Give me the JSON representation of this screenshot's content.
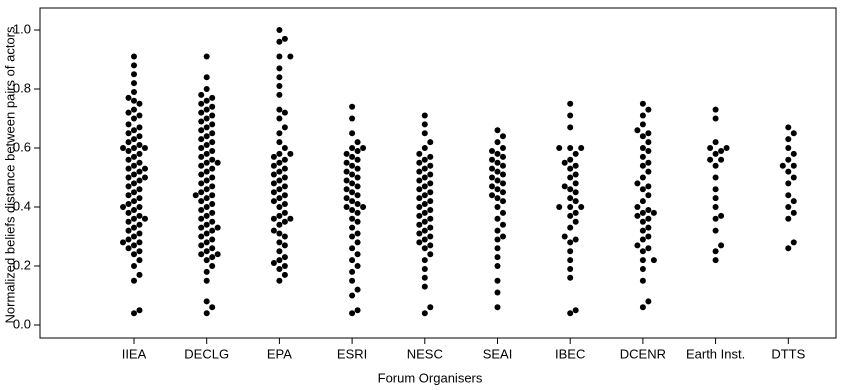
{
  "chart_data": {
    "type": "beeswarm",
    "x_label": "Forum Organisers",
    "y_label": "Normalized beliefs distance between pairs of actors",
    "color": "#000000",
    "ylim": [
      0,
      1
    ],
    "yticks": [
      {
        "value": 0,
        "label": "0.0"
      },
      {
        "value": 0.2,
        "label": "0.2"
      },
      {
        "value": 0.4,
        "label": "0.4"
      },
      {
        "value": 0.6,
        "label": "0.6"
      },
      {
        "value": 0.8,
        "label": "0.8"
      },
      {
        "value": 1,
        "label": "1.0"
      }
    ],
    "categories": [
      "IIEA",
      "DECLG",
      "EPA",
      "ESRI",
      "NESC",
      "SEAI",
      "IBEC",
      "DCENR",
      "Earth Inst.",
      "DTTS"
    ],
    "values": [
      [
        0.04,
        0.05,
        0.15,
        0.17,
        0.2,
        0.22,
        0.24,
        0.25,
        0.26,
        0.27,
        0.28,
        0.28,
        0.29,
        0.3,
        0.31,
        0.32,
        0.33,
        0.34,
        0.35,
        0.36,
        0.36,
        0.37,
        0.38,
        0.39,
        0.4,
        0.4,
        0.41,
        0.42,
        0.43,
        0.44,
        0.45,
        0.46,
        0.47,
        0.48,
        0.49,
        0.5,
        0.5,
        0.51,
        0.52,
        0.53,
        0.53,
        0.54,
        0.55,
        0.56,
        0.57,
        0.58,
        0.59,
        0.6,
        0.6,
        0.6,
        0.61,
        0.62,
        0.63,
        0.64,
        0.65,
        0.66,
        0.67,
        0.68,
        0.7,
        0.71,
        0.72,
        0.73,
        0.75,
        0.76,
        0.77,
        0.79,
        0.82,
        0.85,
        0.88,
        0.91
      ],
      [
        0.04,
        0.06,
        0.08,
        0.15,
        0.18,
        0.2,
        0.22,
        0.23,
        0.24,
        0.24,
        0.25,
        0.26,
        0.27,
        0.28,
        0.29,
        0.3,
        0.31,
        0.32,
        0.33,
        0.33,
        0.34,
        0.35,
        0.36,
        0.37,
        0.38,
        0.39,
        0.4,
        0.41,
        0.42,
        0.43,
        0.44,
        0.44,
        0.45,
        0.46,
        0.47,
        0.48,
        0.49,
        0.5,
        0.51,
        0.52,
        0.53,
        0.54,
        0.55,
        0.55,
        0.56,
        0.57,
        0.58,
        0.59,
        0.6,
        0.61,
        0.62,
        0.63,
        0.64,
        0.65,
        0.66,
        0.67,
        0.68,
        0.69,
        0.7,
        0.71,
        0.72,
        0.73,
        0.74,
        0.75,
        0.76,
        0.77,
        0.78,
        0.8,
        0.84,
        0.91
      ],
      [
        0.15,
        0.17,
        0.19,
        0.2,
        0.21,
        0.22,
        0.23,
        0.25,
        0.27,
        0.28,
        0.3,
        0.31,
        0.32,
        0.34,
        0.35,
        0.36,
        0.36,
        0.37,
        0.38,
        0.4,
        0.41,
        0.42,
        0.43,
        0.44,
        0.45,
        0.46,
        0.47,
        0.48,
        0.49,
        0.5,
        0.51,
        0.52,
        0.53,
        0.54,
        0.55,
        0.56,
        0.57,
        0.58,
        0.58,
        0.6,
        0.62,
        0.65,
        0.67,
        0.7,
        0.72,
        0.73,
        0.78,
        0.81,
        0.84,
        0.87,
        0.91,
        0.91,
        0.96,
        0.97,
        1.0
      ],
      [
        0.04,
        0.05,
        0.1,
        0.12,
        0.15,
        0.18,
        0.2,
        0.22,
        0.24,
        0.26,
        0.28,
        0.3,
        0.31,
        0.33,
        0.35,
        0.36,
        0.38,
        0.39,
        0.4,
        0.4,
        0.41,
        0.42,
        0.43,
        0.44,
        0.45,
        0.46,
        0.47,
        0.48,
        0.49,
        0.5,
        0.51,
        0.52,
        0.53,
        0.54,
        0.55,
        0.56,
        0.57,
        0.58,
        0.59,
        0.6,
        0.6,
        0.62,
        0.65,
        0.7,
        0.74
      ],
      [
        0.04,
        0.06,
        0.13,
        0.16,
        0.19,
        0.22,
        0.24,
        0.26,
        0.27,
        0.28,
        0.29,
        0.3,
        0.31,
        0.32,
        0.33,
        0.34,
        0.35,
        0.36,
        0.37,
        0.38,
        0.39,
        0.4,
        0.41,
        0.42,
        0.43,
        0.44,
        0.45,
        0.46,
        0.47,
        0.48,
        0.49,
        0.5,
        0.51,
        0.52,
        0.53,
        0.54,
        0.55,
        0.56,
        0.57,
        0.58,
        0.6,
        0.62,
        0.65,
        0.68,
        0.71
      ],
      [
        0.06,
        0.11,
        0.15,
        0.2,
        0.23,
        0.26,
        0.29,
        0.3,
        0.32,
        0.34,
        0.36,
        0.38,
        0.4,
        0.42,
        0.43,
        0.44,
        0.45,
        0.46,
        0.47,
        0.48,
        0.49,
        0.5,
        0.51,
        0.52,
        0.53,
        0.54,
        0.55,
        0.56,
        0.57,
        0.58,
        0.59,
        0.6,
        0.62,
        0.64,
        0.66
      ],
      [
        0.04,
        0.05,
        0.16,
        0.19,
        0.22,
        0.25,
        0.28,
        0.29,
        0.3,
        0.33,
        0.35,
        0.37,
        0.38,
        0.4,
        0.4,
        0.4,
        0.42,
        0.43,
        0.45,
        0.46,
        0.47,
        0.48,
        0.5,
        0.51,
        0.53,
        0.54,
        0.55,
        0.56,
        0.58,
        0.6,
        0.6,
        0.6,
        0.67,
        0.71,
        0.75
      ],
      [
        0.06,
        0.08,
        0.15,
        0.19,
        0.22,
        0.22,
        0.25,
        0.26,
        0.27,
        0.29,
        0.3,
        0.32,
        0.33,
        0.35,
        0.36,
        0.37,
        0.38,
        0.38,
        0.39,
        0.4,
        0.42,
        0.44,
        0.46,
        0.47,
        0.48,
        0.5,
        0.52,
        0.54,
        0.55,
        0.57,
        0.59,
        0.6,
        0.62,
        0.64,
        0.65,
        0.66,
        0.68,
        0.71,
        0.73,
        0.75
      ],
      [
        0.22,
        0.25,
        0.27,
        0.32,
        0.36,
        0.37,
        0.4,
        0.43,
        0.46,
        0.5,
        0.54,
        0.56,
        0.56,
        0.58,
        0.59,
        0.6,
        0.6,
        0.62,
        0.7,
        0.73
      ],
      [
        0.26,
        0.28,
        0.36,
        0.38,
        0.4,
        0.42,
        0.44,
        0.48,
        0.5,
        0.52,
        0.54,
        0.54,
        0.56,
        0.58,
        0.6,
        0.63,
        0.65,
        0.67
      ]
    ]
  }
}
